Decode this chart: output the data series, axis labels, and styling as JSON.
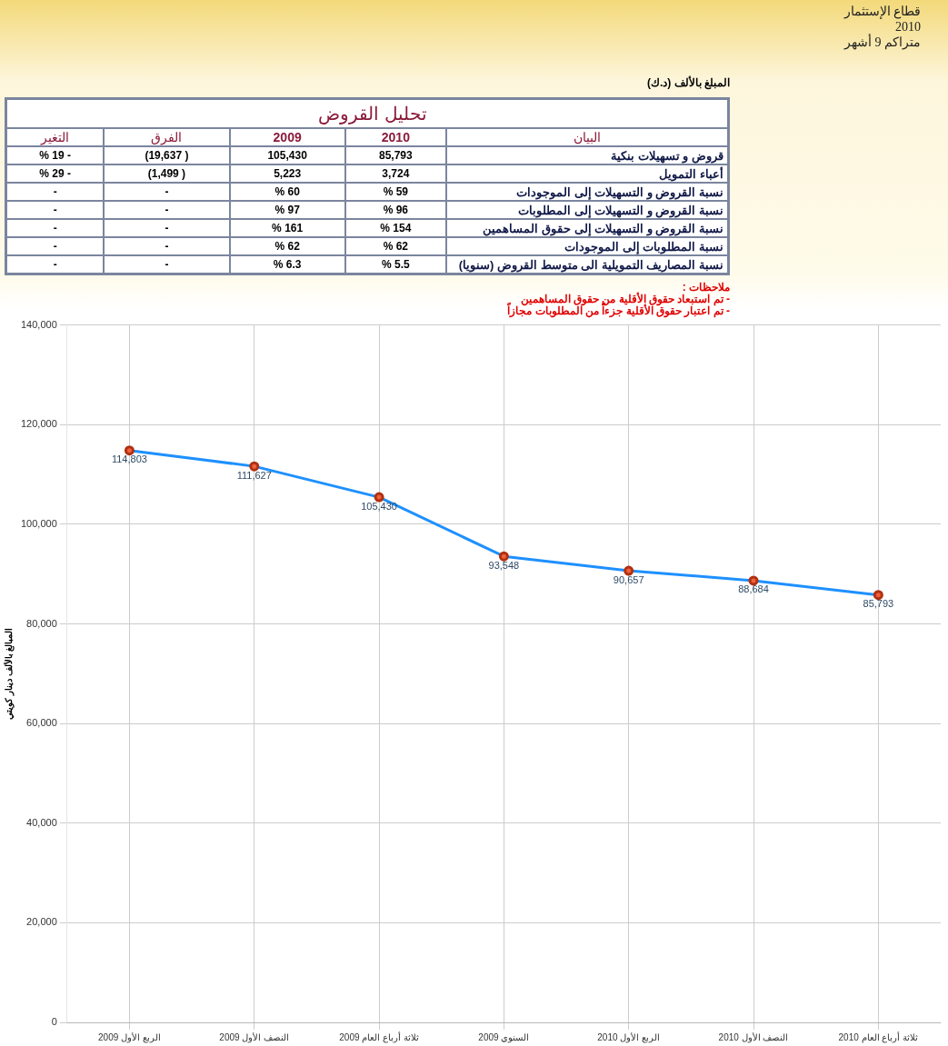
{
  "chart_data": [
    {
      "type": "other",
      "title": "تحليل القروض",
      "ylabel": "البيان",
      "categories": [
        "2010",
        "2009",
        "الفرق",
        "التغير"
      ],
      "y_categories": [
        "قروض و تسهيلات بنكية",
        "أعباء التمويل",
        "نسبة القروض و التسهيلات إلى الموجودات",
        "نسبة القروض و التسهيلات إلى المطلوبات",
        "نسبة القروض و التسهيلات إلى حقوق المساهمين",
        "نسبة المطلوبات إلى الموجودات",
        "نسبة المصاريف التمويلية الى متوسط القروض (سنويا)"
      ],
      "cell_labels": [
        [
          "85,793",
          "105,430",
          "( 19,637)",
          "- 19 %"
        ],
        [
          "3,724",
          "5,223",
          "( 1,499)",
          "- 29 %"
        ],
        [
          "59 %",
          "60 %",
          "-",
          "-"
        ],
        [
          "96 %",
          "97 %",
          "-",
          "-"
        ],
        [
          "154 %",
          "161 %",
          "-",
          "-"
        ],
        [
          "62 %",
          "62 %",
          "-",
          "-"
        ],
        [
          "5.5 %",
          "6.3 %",
          "-",
          "-"
        ]
      ],
      "annotations": [
        "قطاع الإستثمار",
        "2010",
        "متراكم 9 أشهر",
        "المبلغ بالألف (د.ك)",
        "ملاحظات :",
        "- تم استبعاد حقوق الأقلية من حقوق المساهمين",
        "- تم اعتبار حقوق الأقلية جزءاً من المطلوبات مجازاً"
      ]
    },
    {
      "type": "line",
      "ylabel": "المبالغ بالألف دينار كويتي",
      "categories": [
        "الربع الأول 2009",
        "النصف الأول 2009",
        "ثلاثة أرباع العام 2009",
        "السنوي 2009",
        "الربع الأول 2010",
        "النصف الأول 2010",
        "ثلاثة أرباع العام 2010"
      ],
      "values": [
        114803,
        111627,
        105430,
        93548,
        90657,
        88684,
        85793
      ],
      "value_labels": [
        "114,803",
        "111,627",
        "105,430",
        "93,548",
        "90,657",
        "88,684",
        "85,793"
      ],
      "color": "#1e90ff",
      "marker": "circle",
      "grid": true,
      "ylim": [
        0,
        140000
      ],
      "yticks": [
        0,
        {
          "value": 20000,
          "label": "20,000"
        },
        {
          "value": 40000,
          "label": "40,000"
        },
        {
          "value": 60000,
          "label": "60,000"
        },
        {
          "value": 80000,
          "label": "80,000"
        },
        {
          "value": 100000,
          "label": "100,000"
        },
        {
          "value": 120000,
          "label": "120,000"
        },
        {
          "value": 140000,
          "label": "140,000"
        }
      ]
    }
  ]
}
